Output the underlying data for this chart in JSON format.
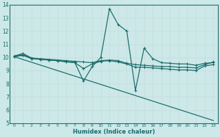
{
  "bg_color": "#cce8e8",
  "grid_color": "#aacccc",
  "line_color": "#1a6b6b",
  "xlabel": "Humidex (Indice chaleur)",
  "xlim": [
    -0.5,
    23.5
  ],
  "ylim": [
    5,
    14
  ],
  "yticks": [
    5,
    6,
    7,
    8,
    9,
    10,
    11,
    12,
    13,
    14
  ],
  "xticks": [
    0,
    1,
    2,
    3,
    4,
    5,
    6,
    7,
    8,
    9,
    10,
    11,
    12,
    13,
    14,
    15,
    16,
    17,
    18,
    19,
    20,
    21,
    22,
    23
  ],
  "series": [
    {
      "x": [
        0,
        1,
        2,
        3,
        4,
        5,
        6,
        7,
        8,
        9,
        10,
        11,
        12,
        13,
        14,
        15,
        16,
        17,
        18,
        19,
        20,
        21,
        22,
        23
      ],
      "y": [
        10.1,
        10.3,
        9.95,
        9.85,
        9.8,
        9.75,
        9.7,
        9.6,
        8.2,
        9.3,
        10.0,
        13.7,
        12.5,
        12.0,
        7.5,
        10.7,
        9.9,
        9.6,
        9.55,
        9.5,
        9.5,
        9.4,
        9.55,
        9.6
      ],
      "markers": true
    },
    {
      "x": [
        0,
        1,
        2,
        3,
        4,
        5,
        6,
        7,
        8,
        9,
        10,
        11,
        12,
        13,
        14,
        15,
        16,
        17,
        18,
        19,
        20,
        21,
        22,
        23
      ],
      "y": [
        10.1,
        10.2,
        9.95,
        9.9,
        9.85,
        9.8,
        9.75,
        9.7,
        9.65,
        9.6,
        9.75,
        9.8,
        9.75,
        9.55,
        9.45,
        9.4,
        9.35,
        9.3,
        9.3,
        9.25,
        9.25,
        9.2,
        9.45,
        9.65
      ],
      "markers": true
    },
    {
      "x": [
        0,
        1,
        2,
        3,
        4,
        5,
        6,
        7,
        8,
        9,
        10,
        11,
        12,
        13,
        14,
        15,
        16,
        17,
        18,
        19,
        20,
        21,
        22,
        23
      ],
      "y": [
        10.05,
        10.15,
        9.9,
        9.85,
        9.8,
        9.75,
        9.65,
        9.6,
        9.15,
        9.5,
        9.7,
        9.75,
        9.65,
        9.5,
        9.25,
        9.25,
        9.2,
        9.15,
        9.1,
        9.05,
        9.05,
        9.0,
        9.35,
        9.45
      ],
      "markers": true
    },
    {
      "x": [
        0,
        23
      ],
      "y": [
        10.05,
        5.2
      ],
      "markers": false
    }
  ]
}
